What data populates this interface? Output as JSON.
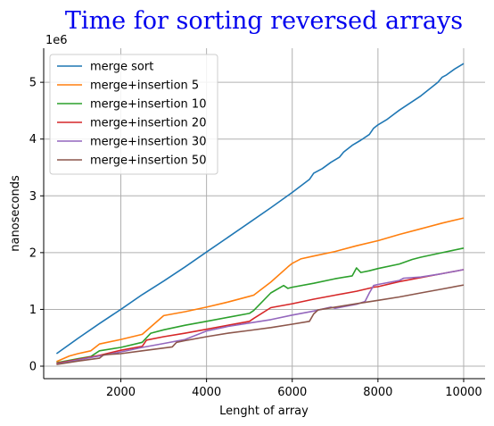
{
  "chart_data": {
    "type": "line",
    "title": "Time for sorting reversed arrays",
    "xlabel": "Lenght of array",
    "ylabel": "nanoseconds",
    "y_offset_label": "1e6",
    "xlim": [
      200,
      10500
    ],
    "ylim": [
      -220000,
      5600000
    ],
    "x_ticks": [
      2000,
      4000,
      6000,
      8000,
      10000
    ],
    "x_tick_labels": [
      "2000",
      "4000",
      "6000",
      "8000",
      "10000"
    ],
    "y_ticks": [
      0,
      1000000,
      2000000,
      3000000,
      4000000,
      5000000
    ],
    "y_tick_labels": [
      "0",
      "1",
      "2",
      "3",
      "4",
      "5"
    ],
    "grid": true,
    "legend_position": "upper-left",
    "series": [
      {
        "name": "merge sort",
        "color": "#1f77b4",
        "x": [
          500,
          1000,
          1500,
          2000,
          2500,
          3000,
          3500,
          4000,
          4500,
          5000,
          5500,
          6000,
          6400,
          6500,
          6700,
          6900,
          7100,
          7200,
          7400,
          7600,
          7800,
          7900,
          8000,
          8200,
          8500,
          9000,
          9400,
          9500,
          9600,
          9800,
          10000
        ],
        "y": [
          220000,
          490000,
          750000,
          1000000,
          1260000,
          1500000,
          1750000,
          2010000,
          2270000,
          2530000,
          2790000,
          3060000,
          3290000,
          3400000,
          3480000,
          3590000,
          3680000,
          3770000,
          3890000,
          3980000,
          4080000,
          4190000,
          4250000,
          4340000,
          4510000,
          4760000,
          5000000,
          5090000,
          5130000,
          5240000,
          5330000
        ]
      },
      {
        "name": "merge+insertion 5",
        "color": "#ff7f0e",
        "x": [
          500,
          800,
          1000,
          1300,
          1500,
          2000,
          2500,
          3000,
          3500,
          4000,
          4500,
          5000,
          5100,
          5500,
          5900,
          6000,
          6200,
          6500,
          7000,
          7500,
          8000,
          8500,
          9000,
          9500,
          10000
        ],
        "y": [
          80000,
          180000,
          220000,
          270000,
          390000,
          470000,
          560000,
          890000,
          960000,
          1040000,
          1130000,
          1230000,
          1250000,
          1480000,
          1750000,
          1810000,
          1890000,
          1940000,
          2020000,
          2120000,
          2210000,
          2320000,
          2420000,
          2520000,
          2610000
        ]
      },
      {
        "name": "merge+insertion 10",
        "color": "#2ca02c",
        "x": [
          500,
          1000,
          1300,
          1500,
          2000,
          2500,
          2700,
          3000,
          3500,
          4000,
          4500,
          5000,
          5100,
          5500,
          5800,
          5900,
          6000,
          6500,
          7000,
          7400,
          7500,
          7600,
          7800,
          8000,
          8500,
          8800,
          9000,
          9500,
          10000
        ],
        "y": [
          60000,
          130000,
          170000,
          270000,
          330000,
          420000,
          580000,
          640000,
          720000,
          790000,
          860000,
          930000,
          980000,
          1290000,
          1420000,
          1370000,
          1390000,
          1460000,
          1540000,
          1590000,
          1730000,
          1650000,
          1680000,
          1720000,
          1800000,
          1880000,
          1920000,
          2000000,
          2080000
        ]
      },
      {
        "name": "merge+insertion 20",
        "color": "#d62728",
        "x": [
          500,
          1000,
          1500,
          2000,
          2500,
          2600,
          3000,
          3500,
          4000,
          4500,
          5000,
          5100,
          5500,
          6000,
          6500,
          7000,
          7500,
          7900,
          8000,
          8500,
          9000,
          9500,
          10000
        ],
        "y": [
          50000,
          120000,
          190000,
          280000,
          350000,
          460000,
          520000,
          580000,
          650000,
          720000,
          790000,
          840000,
          1030000,
          1100000,
          1180000,
          1250000,
          1320000,
          1390000,
          1400000,
          1490000,
          1560000,
          1630000,
          1700000
        ]
      },
      {
        "name": "merge+insertion 30",
        "color": "#9467bd",
        "x": [
          500,
          1000,
          1500,
          2000,
          2500,
          3000,
          3500,
          4000,
          4500,
          5000,
          5500,
          6000,
          6500,
          6900,
          7000,
          7500,
          7700,
          7800,
          7900,
          8000,
          8500,
          8600,
          9000,
          9500,
          10000
        ],
        "y": [
          40000,
          110000,
          180000,
          250000,
          330000,
          400000,
          470000,
          620000,
          700000,
          760000,
          820000,
          900000,
          970000,
          1040000,
          1020000,
          1090000,
          1140000,
          1290000,
          1420000,
          1440000,
          1510000,
          1550000,
          1570000,
          1630000,
          1700000
        ]
      },
      {
        "name": "merge+insertion 50",
        "color": "#8c564b",
        "x": [
          500,
          1000,
          1500,
          1600,
          2000,
          2500,
          3000,
          3200,
          3300,
          3500,
          4000,
          4500,
          5000,
          5500,
          6000,
          6400,
          6500,
          6600,
          7000,
          7500,
          8000,
          8500,
          9000,
          9500,
          10000
        ],
        "y": [
          30000,
          90000,
          140000,
          200000,
          220000,
          270000,
          320000,
          340000,
          420000,
          450000,
          520000,
          580000,
          630000,
          680000,
          740000,
          790000,
          920000,
          990000,
          1040000,
          1100000,
          1160000,
          1220000,
          1290000,
          1360000,
          1430000
        ]
      }
    ]
  }
}
